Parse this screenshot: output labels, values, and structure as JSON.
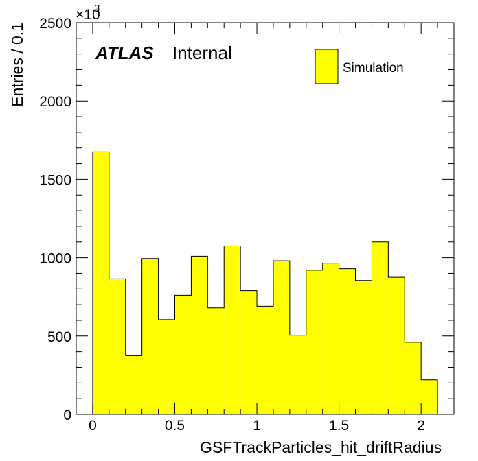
{
  "chart_data": {
    "type": "bar",
    "xlabel": "GSFTrackParticles_hit_driftRadius",
    "ylabel": "Entries / 0.1",
    "y_multiplier_base": "×10",
    "y_multiplier_exp": "3",
    "experiment": "ATLAS",
    "status": "Internal",
    "legend": [
      {
        "name": "Simulation",
        "color": "#ffff00"
      }
    ],
    "legend_position": "top-right",
    "xlim": [
      -0.1,
      2.2
    ],
    "ylim": [
      0,
      2500
    ],
    "x_ticks": [
      0,
      0.5,
      1,
      1.5,
      2
    ],
    "x_tick_labels": [
      "0",
      "0.5",
      "1",
      "1.5",
      "2"
    ],
    "y_ticks": [
      0,
      500,
      1000,
      1500,
      2000,
      2500
    ],
    "y_tick_labels": [
      "0",
      "500",
      "1000",
      "1500",
      "2000",
      "2500"
    ],
    "bin_width": 0.1,
    "bin_edges_start": 0.0,
    "values": [
      1675,
      865,
      375,
      995,
      605,
      760,
      1010,
      680,
      1075,
      790,
      690,
      980,
      505,
      920,
      965,
      930,
      855,
      1100,
      875,
      460,
      220
    ],
    "fill_color": "#ffff00",
    "line_color": "#000000"
  }
}
